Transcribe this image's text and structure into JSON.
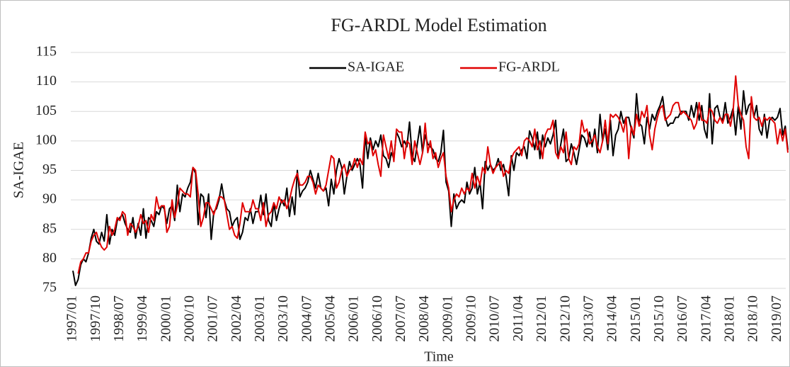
{
  "chart_data": {
    "type": "line",
    "title": "FG-ARDL Model Estimation",
    "y_label": "SA-IGAE",
    "x_label": "Time",
    "legend": "top",
    "grid": true,
    "ylim": [
      75,
      115
    ],
    "yticks": [
      75,
      80,
      85,
      90,
      95,
      100,
      105,
      110,
      115
    ],
    "categories": [
      "1997/01",
      null,
      null,
      null,
      null,
      null,
      null,
      null,
      null,
      "1997/10",
      null,
      null,
      null,
      null,
      null,
      null,
      null,
      null,
      "1998/07",
      null,
      null,
      null,
      null,
      null,
      null,
      null,
      null,
      "1999/04",
      null,
      null,
      null,
      null,
      null,
      null,
      null,
      null,
      "2000/01",
      null,
      null,
      null,
      null,
      null,
      null,
      null,
      null,
      "2000/10",
      null,
      null,
      null,
      null,
      null,
      null,
      null,
      null,
      "2001/07",
      null,
      null,
      null,
      null,
      null,
      null,
      null,
      null,
      "2002/04",
      null,
      null,
      null,
      null,
      null,
      null,
      null,
      null,
      "2003/01",
      null,
      null,
      null,
      null,
      null,
      null,
      null,
      null,
      "2003/10",
      null,
      null,
      null,
      null,
      null,
      null,
      null,
      null,
      "2004/07",
      null,
      null,
      null,
      null,
      null,
      null,
      null,
      null,
      "2005/04",
      null,
      null,
      null,
      null,
      null,
      null,
      null,
      null,
      "2006/01",
      null,
      null,
      null,
      null,
      null,
      null,
      null,
      null,
      "2006/10",
      null,
      null,
      null,
      null,
      null,
      null,
      null,
      null,
      "2007/07",
      null,
      null,
      null,
      null,
      null,
      null,
      null,
      null,
      "2008/04",
      null,
      null,
      null,
      null,
      null,
      null,
      null,
      null,
      "2009/01",
      null,
      null,
      null,
      null,
      null,
      null,
      null,
      null,
      "2009/10",
      null,
      null,
      null,
      null,
      null,
      null,
      null,
      null,
      "2010/07",
      null,
      null,
      null,
      null,
      null,
      null,
      null,
      null,
      "2011/04",
      null,
      null,
      null,
      null,
      null,
      null,
      null,
      null,
      "2012/01",
      null,
      null,
      null,
      null,
      null,
      null,
      null,
      null,
      "2012/10",
      null,
      null,
      null,
      null,
      null,
      null,
      null,
      null,
      "2013/07",
      null,
      null,
      null,
      null,
      null,
      null,
      null,
      null,
      "2014/04",
      null,
      null,
      null,
      null,
      null,
      null,
      null,
      null,
      "2015/01",
      null,
      null,
      null,
      null,
      null,
      null,
      null,
      null,
      "2015/10",
      null,
      null,
      null,
      null,
      null,
      null,
      null,
      null,
      "2016/07",
      null,
      null,
      null,
      null,
      null,
      null,
      null,
      null,
      "2017/04",
      null,
      null,
      null,
      null,
      null,
      null,
      null,
      null,
      "2018/01",
      null,
      null,
      null,
      null,
      null,
      null,
      null,
      null,
      "2018/10",
      null,
      null,
      null,
      null,
      null,
      null,
      null,
      null,
      "2019/07",
      null,
      null,
      null,
      null
    ],
    "series": [
      {
        "name": "SA-IGAE",
        "color": "#000000",
        "values": [
          78,
          75.5,
          76.5,
          79,
          80,
          79.5,
          81,
          83.5,
          85,
          83,
          82.5,
          84.5,
          83,
          87.5,
          82.5,
          85,
          84,
          86.5,
          87,
          87.5,
          86,
          85,
          84.5,
          87,
          83.5,
          86,
          84,
          88.5,
          83.5,
          87,
          86.5,
          85.5,
          88,
          87.5,
          89,
          88.5,
          86,
          88.5,
          89,
          86.5,
          92.5,
          88,
          91,
          90.5,
          92,
          93,
          95.5,
          94.5,
          85.8,
          91,
          90.5,
          87,
          91,
          83.3,
          88,
          88.5,
          90,
          92.7,
          90,
          88.5,
          88,
          85.5,
          86.5,
          87,
          83.3,
          84.5,
          87,
          86.5,
          88.5,
          86,
          88,
          88,
          90.8,
          87.5,
          91,
          86.5,
          85.5,
          89.5,
          86.5,
          88.5,
          90,
          89,
          92,
          87.2,
          90.5,
          87.5,
          95,
          90.5,
          91.5,
          92,
          93,
          95,
          93.5,
          92,
          94.5,
          92,
          91.5,
          92,
          89,
          93.5,
          91,
          95,
          97,
          95.5,
          91,
          94,
          96.5,
          95,
          96,
          97,
          96,
          92,
          101,
          97,
          100.5,
          98.5,
          100,
          99,
          101,
          97.5,
          97,
          95.5,
          98,
          97,
          101.5,
          100.5,
          99,
          100,
          99,
          103.2,
          97.5,
          96.5,
          99.5,
          102.5,
          98,
          101,
          99.5,
          99,
          98.5,
          97,
          96.5,
          98,
          101.8,
          93,
          91.5,
          85.5,
          91,
          88.5,
          89.5,
          90,
          89.5,
          93,
          91,
          92,
          95.5,
          91,
          93,
          88.5,
          96.5,
          95,
          96,
          95,
          95.5,
          97,
          95,
          96,
          94,
          90.7,
          97.5,
          95,
          98,
          97.5,
          98.5,
          99,
          97,
          101.7,
          100.5,
          98.5,
          101.5,
          97,
          101,
          99,
          100.5,
          99.5,
          101,
          103.5,
          97,
          99.5,
          102,
          96.5,
          97,
          99.5,
          98,
          96,
          98.5,
          101,
          100.5,
          99,
          101.5,
          99,
          102,
          98,
          104.5,
          100,
          102,
          98.5,
          103.5,
          97.5,
          101,
          102,
          105,
          103,
          104,
          104,
          102,
          100.5,
          108,
          103,
          102.5,
          99.5,
          104,
          102,
          104.5,
          103.5,
          105,
          106,
          107.5,
          104,
          102.5,
          103,
          103,
          104,
          104,
          105,
          105,
          105,
          103.5,
          106,
          104,
          106.5,
          103.5,
          106,
          102,
          100.5,
          108,
          99.5,
          105.5,
          106,
          104,
          103.5,
          106.5,
          103,
          104,
          105.5,
          101,
          106,
          102,
          108.5,
          104.5,
          106,
          106.5,
          104,
          106,
          102,
          101,
          104.5,
          100.5,
          103.5,
          104,
          103.5,
          104,
          105.5,
          101,
          102.5,
          98.5
        ]
      },
      {
        "name": "FG-ARDL",
        "color": "#e00000",
        "values": [
          null,
          null,
          77.5,
          79.5,
          80,
          81,
          81,
          83,
          84,
          84.5,
          83,
          82,
          81.5,
          82,
          85.5,
          84,
          85,
          87,
          86.5,
          88,
          87.5,
          84,
          86,
          85.5,
          84.5,
          85.5,
          87.5,
          86,
          86.5,
          84.5,
          87.5,
          86.5,
          90.5,
          88.5,
          89,
          89,
          84.5,
          85.5,
          90,
          87,
          89,
          92,
          91.5,
          91,
          91,
          90.5,
          95.5,
          95,
          91,
          85.5,
          87,
          89.5,
          89.5,
          88.5,
          87.5,
          89,
          90.5,
          90.5,
          90,
          87.5,
          85,
          85.5,
          84,
          83.5,
          86,
          89.5,
          88,
          88,
          88,
          90,
          88.5,
          88.5,
          86.5,
          89.5,
          85.5,
          87.5,
          88,
          89.5,
          88.5,
          90.5,
          89.5,
          90,
          88.5,
          90,
          92,
          93.5,
          94.5,
          92.5,
          92.5,
          93,
          94,
          94,
          93,
          91,
          92.5,
          92,
          91.5,
          92.5,
          95,
          97.5,
          97,
          92,
          93,
          95,
          96,
          94,
          95,
          95.5,
          97,
          95.5,
          97,
          96,
          101.5,
          99.5,
          100,
          97.5,
          98.5,
          96,
          94,
          101,
          99,
          97,
          100,
          96.5,
          102,
          101.5,
          101.5,
          97,
          100,
          99.5,
          96,
          100,
          98,
          96,
          98,
          103,
          98,
          100,
          97,
          98,
          95.5,
          97,
          98,
          94,
          92,
          88,
          90,
          91,
          90.5,
          92,
          91,
          92,
          91.5,
          94.5,
          92,
          94,
          92.5,
          95.5,
          94.5,
          99,
          96,
          94.5,
          95.5,
          96,
          96.5,
          94,
          95,
          94.5,
          97,
          98,
          98.5,
          99,
          97.5,
          100,
          100.5,
          100,
          99,
          102,
          98.5,
          100,
          97,
          101,
          102,
          102,
          103.5,
          98,
          97,
          99,
          98,
          101.5,
          97,
          96,
          99,
          98.5,
          99.5,
          103.5,
          101.5,
          102,
          99.5,
          100,
          101,
          99,
          98,
          100,
          103.5,
          99.5,
          104.5,
          104,
          104.5,
          104,
          103,
          101.5,
          104,
          97,
          102.5,
          101,
          104.5,
          102.5,
          105,
          104,
          106,
          101,
          98.5,
          102,
          104,
          105.5,
          106,
          103.5,
          104,
          104.5,
          106,
          106.5,
          106.5,
          104.5,
          105,
          104.5,
          104,
          103.5,
          102,
          103,
          106.5,
          103.5,
          103.5,
          103,
          105.5,
          105,
          103.5,
          103,
          104,
          103,
          104.5,
          104.5,
          102.5,
          105,
          111,
          106,
          104.5,
          103.5,
          99,
          97,
          107.5,
          104,
          103.5,
          104,
          102.5,
          104,
          103.5,
          104,
          103.5,
          103,
          99.5,
          102,
          100,
          102,
          98
        ]
      }
    ]
  }
}
